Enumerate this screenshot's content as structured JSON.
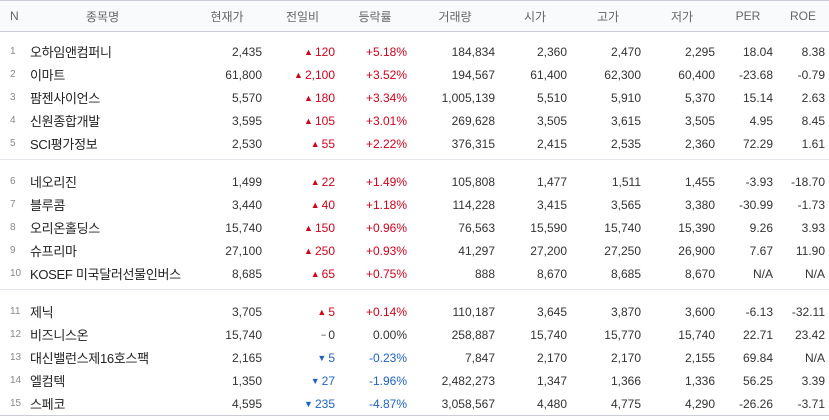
{
  "headers": {
    "n": "N",
    "name": "종목명",
    "price": "현재가",
    "change": "전일비",
    "rate": "등락률",
    "volume": "거래량",
    "open": "시가",
    "high": "고가",
    "low": "저가",
    "per": "PER",
    "roe": "ROE"
  },
  "groups": [
    [
      {
        "n": "1",
        "name": "오하임앤컴퍼니",
        "price": "2,435",
        "dir": "up",
        "arrow": "▲",
        "change": "120",
        "rate": "+5.18%",
        "volume": "184,834",
        "open": "2,360",
        "high": "2,470",
        "low": "2,295",
        "per": "18.04",
        "roe": "8.38"
      },
      {
        "n": "2",
        "name": "이마트",
        "price": "61,800",
        "dir": "up",
        "arrow": "▲",
        "change": "2,100",
        "rate": "+3.52%",
        "volume": "194,567",
        "open": "61,400",
        "high": "62,300",
        "low": "60,400",
        "per": "-23.68",
        "roe": "-0.79"
      },
      {
        "n": "3",
        "name": "팜젠사이언스",
        "price": "5,570",
        "dir": "up",
        "arrow": "▲",
        "change": "180",
        "rate": "+3.34%",
        "volume": "1,005,139",
        "open": "5,510",
        "high": "5,910",
        "low": "5,370",
        "per": "15.14",
        "roe": "2.63"
      },
      {
        "n": "4",
        "name": "신원종합개발",
        "price": "3,595",
        "dir": "up",
        "arrow": "▲",
        "change": "105",
        "rate": "+3.01%",
        "volume": "269,628",
        "open": "3,505",
        "high": "3,615",
        "low": "3,505",
        "per": "4.95",
        "roe": "8.45"
      },
      {
        "n": "5",
        "name": "SCI평가정보",
        "price": "2,530",
        "dir": "up",
        "arrow": "▲",
        "change": "55",
        "rate": "+2.22%",
        "volume": "376,315",
        "open": "2,415",
        "high": "2,535",
        "low": "2,360",
        "per": "72.29",
        "roe": "1.61"
      }
    ],
    [
      {
        "n": "6",
        "name": "네오리진",
        "price": "1,499",
        "dir": "up",
        "arrow": "▲",
        "change": "22",
        "rate": "+1.49%",
        "volume": "105,808",
        "open": "1,477",
        "high": "1,511",
        "low": "1,455",
        "per": "-3.93",
        "roe": "-18.70"
      },
      {
        "n": "7",
        "name": "블루콤",
        "price": "3,440",
        "dir": "up",
        "arrow": "▲",
        "change": "40",
        "rate": "+1.18%",
        "volume": "114,228",
        "open": "3,415",
        "high": "3,565",
        "low": "3,380",
        "per": "-30.99",
        "roe": "-1.73"
      },
      {
        "n": "8",
        "name": "오리온홀딩스",
        "price": "15,740",
        "dir": "up",
        "arrow": "▲",
        "change": "150",
        "rate": "+0.96%",
        "volume": "76,563",
        "open": "15,590",
        "high": "15,740",
        "low": "15,390",
        "per": "9.26",
        "roe": "3.93"
      },
      {
        "n": "9",
        "name": "슈프리마",
        "price": "27,100",
        "dir": "up",
        "arrow": "▲",
        "change": "250",
        "rate": "+0.93%",
        "volume": "41,297",
        "open": "27,200",
        "high": "27,250",
        "low": "26,900",
        "per": "7.67",
        "roe": "11.90"
      },
      {
        "n": "10",
        "name": "KOSEF 미국달러선물인버스",
        "price": "8,685",
        "dir": "up",
        "arrow": "▲",
        "change": "65",
        "rate": "+0.75%",
        "volume": "888",
        "open": "8,670",
        "high": "8,685",
        "low": "8,670",
        "per": "N/A",
        "roe": "N/A"
      }
    ],
    [
      {
        "n": "11",
        "name": "제닉",
        "price": "3,705",
        "dir": "up",
        "arrow": "▲",
        "change": "5",
        "rate": "+0.14%",
        "volume": "110,187",
        "open": "3,645",
        "high": "3,870",
        "low": "3,600",
        "per": "-6.13",
        "roe": "-32.11"
      },
      {
        "n": "12",
        "name": "비즈니스온",
        "price": "15,740",
        "dir": "flat",
        "arrow": "−",
        "change": "0",
        "rate": "0.00%",
        "volume": "258,887",
        "open": "15,740",
        "high": "15,770",
        "low": "15,740",
        "per": "22.71",
        "roe": "23.42"
      },
      {
        "n": "13",
        "name": "대신밸런스제16호스팩",
        "price": "2,165",
        "dir": "down",
        "arrow": "▼",
        "change": "5",
        "rate": "-0.23%",
        "volume": "7,847",
        "open": "2,170",
        "high": "2,170",
        "low": "2,155",
        "per": "69.84",
        "roe": "N/A"
      },
      {
        "n": "14",
        "name": "엘컴텍",
        "price": "1,350",
        "dir": "down",
        "arrow": "▼",
        "change": "27",
        "rate": "-1.96%",
        "volume": "2,482,273",
        "open": "1,347",
        "high": "1,366",
        "low": "1,336",
        "per": "56.25",
        "roe": "3.39"
      },
      {
        "n": "15",
        "name": "스페코",
        "price": "4,595",
        "dir": "down",
        "arrow": "▼",
        "change": "235",
        "rate": "-4.87%",
        "volume": "3,058,567",
        "open": "4,480",
        "high": "4,775",
        "low": "4,290",
        "per": "-26.26",
        "roe": "-3.71"
      }
    ]
  ],
  "colors": {
    "up": "#d0021b",
    "down": "#1d63c7",
    "flat": "#333333"
  }
}
